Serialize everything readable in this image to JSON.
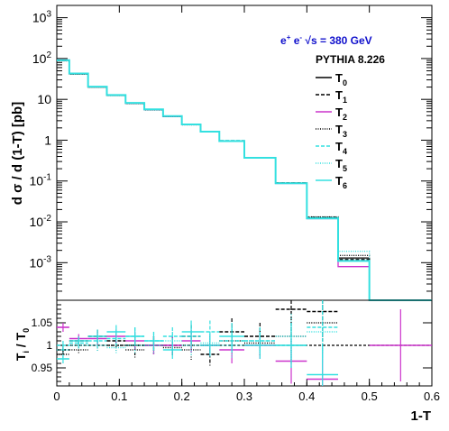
{
  "chart_data": [
    {
      "panel": "upper",
      "type": "line",
      "step": true,
      "yscale": "log",
      "xlim": [
        0,
        0.6
      ],
      "ylim": [
        0.00012,
        2000
      ],
      "ylabel": "d σ / d (1-T) [pb]",
      "title": "e+ e- √s = 380 GeV",
      "title_parts": {
        "beam1": "e",
        "sup1": "+",
        "beam2": "e",
        "sup2": "-",
        "energy": "√s = 380 GeV"
      },
      "subtitle": "PYTHIA 8.226",
      "yticks": [
        {
          "v": 0.001,
          "base": "10",
          "exp": "-3"
        },
        {
          "v": 0.01,
          "base": "10",
          "exp": "-2"
        },
        {
          "v": 0.1,
          "base": "10",
          "exp": "-1"
        },
        {
          "v": 1,
          "base": "1",
          "exp": ""
        },
        {
          "v": 10,
          "base": "10",
          "exp": ""
        },
        {
          "v": 100,
          "base": "10",
          "exp": "2"
        },
        {
          "v": 1000,
          "base": "10",
          "exp": "3"
        }
      ],
      "legend_position": "top-right",
      "edges": [
        0,
        0.02,
        0.05,
        0.08,
        0.11,
        0.14,
        0.17,
        0.2,
        0.23,
        0.26,
        0.3,
        0.35,
        0.4,
        0.45,
        0.5
      ],
      "series": [
        {
          "name": "T",
          "sub": "0",
          "color": "#000000",
          "dash": "",
          "values": [
            90,
            42,
            20,
            12.5,
            8,
            5.6,
            3.8,
            2.4,
            1.6,
            0.95,
            0.37,
            0.088,
            0.0125,
            0.0013,
            0
          ]
        },
        {
          "name": "T",
          "sub": "1",
          "color": "#000000",
          "dash": "4,2",
          "values": [
            89,
            42,
            20.2,
            12.6,
            8.1,
            5.7,
            3.85,
            2.42,
            1.63,
            0.97,
            0.375,
            0.09,
            0.013,
            0.0012,
            0
          ]
        },
        {
          "name": "T",
          "sub": "2",
          "color": "#cc33cc",
          "dash": "",
          "values": [
            92,
            43,
            20.4,
            12.8,
            8.05,
            5.6,
            3.8,
            2.45,
            1.6,
            0.94,
            0.37,
            0.087,
            0.012,
            0.0008,
            0
          ]
        },
        {
          "name": "T",
          "sub": "3",
          "color": "#000000",
          "dash": "1,1.5",
          "values": [
            88,
            41.5,
            20,
            12.4,
            7.9,
            5.5,
            3.78,
            2.38,
            1.6,
            0.96,
            0.373,
            0.09,
            0.0132,
            0.0015,
            0
          ]
        },
        {
          "name": "T",
          "sub": "4",
          "color": "#33e0e0",
          "dash": "4,2",
          "values": [
            90,
            42.3,
            20.3,
            12.7,
            8.2,
            5.65,
            3.9,
            2.45,
            1.62,
            0.98,
            0.375,
            0.088,
            0.0123,
            0.0011,
            0
          ]
        },
        {
          "name": "T",
          "sub": "5",
          "color": "#33e0e0",
          "dash": "1,1.5",
          "values": [
            89,
            42.2,
            20.1,
            12.5,
            8.05,
            5.6,
            3.85,
            2.42,
            1.61,
            0.96,
            0.37,
            0.089,
            0.0128,
            0.0019,
            0
          ]
        },
        {
          "name": "T",
          "sub": "6",
          "color": "#33e0e0",
          "dash": "",
          "values": [
            91,
            43,
            20.4,
            12.8,
            8.2,
            5.7,
            3.9,
            2.43,
            1.62,
            0.95,
            0.37,
            0.088,
            0.0121,
            0.0011,
            0
          ]
        }
      ]
    },
    {
      "panel": "lower",
      "type": "scatter",
      "xlabel": "1-T",
      "ylabel": "T",
      "ylabel_parts": {
        "num": "T",
        "num_sub": "i",
        "sep": " / ",
        "den": "T",
        "den_sub": "0"
      },
      "xlim": [
        0,
        0.6
      ],
      "ylim": [
        0.91,
        1.1
      ],
      "xticks": [
        "0",
        "0.1",
        "0.2",
        "0.3",
        "0.4",
        "0.5",
        "0.6"
      ],
      "xtick_values": [
        0,
        0.1,
        0.2,
        0.3,
        0.4,
        0.5,
        0.6
      ],
      "yticks": [
        "0.95",
        "1",
        "1.05"
      ],
      "ytick_values": [
        0.95,
        1,
        1.05
      ],
      "reference": 1,
      "series": [
        {
          "sub": "1",
          "color": "#000000",
          "dash": "4,2",
          "points": [
            [
              0.01,
              0.99,
              0.01
            ],
            [
              0.035,
              1.01,
              0.01
            ],
            [
              0.065,
              1.02,
              0.015
            ],
            [
              0.095,
              1.01,
              0.015
            ],
            [
              0.125,
              1.0,
              0.02
            ],
            [
              0.155,
              1.0,
              0.02
            ],
            [
              0.185,
              1.0,
              0.02
            ],
            [
              0.215,
              1.02,
              0.025
            ],
            [
              0.245,
              0.98,
              0.025
            ],
            [
              0.28,
              1.03,
              0.03
            ],
            [
              0.325,
              1.02,
              0.03
            ],
            [
              0.375,
              1.08,
              0.06
            ],
            [
              0.425,
              1.075,
              0.07
            ]
          ]
        },
        {
          "sub": "2",
          "color": "#cc33cc",
          "dash": "",
          "points": [
            [
              0.01,
              1.04,
              0.01
            ],
            [
              0.035,
              1.015,
              0.01
            ],
            [
              0.065,
              1.015,
              0.015
            ],
            [
              0.095,
              1.02,
              0.015
            ],
            [
              0.125,
              1.01,
              0.02
            ],
            [
              0.155,
              1.0,
              0.02
            ],
            [
              0.185,
              1.0,
              0.02
            ],
            [
              0.215,
              1.01,
              0.025
            ],
            [
              0.245,
              1.0,
              0.025
            ],
            [
              0.28,
              0.99,
              0.03
            ],
            [
              0.325,
              1.0,
              0.03
            ],
            [
              0.375,
              0.965,
              0.05
            ],
            [
              0.425,
              0.925,
              0.07
            ],
            [
              0.55,
              1.0,
              0.08
            ]
          ]
        },
        {
          "sub": "3",
          "color": "#000000",
          "dash": "1,1.5",
          "points": [
            [
              0.01,
              0.98,
              0.01
            ],
            [
              0.035,
              0.99,
              0.01
            ],
            [
              0.065,
              1.0,
              0.015
            ],
            [
              0.095,
              1.0,
              0.015
            ],
            [
              0.125,
              0.99,
              0.02
            ],
            [
              0.155,
              1.0,
              0.02
            ],
            [
              0.185,
              0.995,
              0.02
            ],
            [
              0.215,
              0.99,
              0.025
            ],
            [
              0.245,
              1.0,
              0.025
            ],
            [
              0.28,
              1.01,
              0.03
            ],
            [
              0.325,
              1.005,
              0.03
            ],
            [
              0.375,
              1.02,
              0.06
            ],
            [
              0.425,
              1.05,
              0.07
            ]
          ]
        },
        {
          "sub": "4",
          "color": "#33e0e0",
          "dash": "4,2",
          "points": [
            [
              0.01,
              1.0,
              0.01
            ],
            [
              0.035,
              1.005,
              0.01
            ],
            [
              0.065,
              1.01,
              0.015
            ],
            [
              0.095,
              1.015,
              0.015
            ],
            [
              0.125,
              1.02,
              0.02
            ],
            [
              0.155,
              1.01,
              0.02
            ],
            [
              0.185,
              1.02,
              0.02
            ],
            [
              0.215,
              1.02,
              0.025
            ],
            [
              0.245,
              1.03,
              0.025
            ],
            [
              0.28,
              1.01,
              0.03
            ],
            [
              0.325,
              1.01,
              0.03
            ],
            [
              0.375,
              1.0,
              0.05
            ],
            [
              0.425,
              1.04,
              0.07
            ]
          ]
        },
        {
          "sub": "5",
          "color": "#33e0e0",
          "dash": "1,1.5",
          "points": [
            [
              0.01,
              0.99,
              0.01
            ],
            [
              0.035,
              1.0,
              0.01
            ],
            [
              0.065,
              1.0,
              0.015
            ],
            [
              0.095,
              0.995,
              0.015
            ],
            [
              0.125,
              1.0,
              0.02
            ],
            [
              0.155,
              1.0,
              0.02
            ],
            [
              0.185,
              1.01,
              0.02
            ],
            [
              0.215,
              1.0,
              0.025
            ],
            [
              0.245,
              1.005,
              0.025
            ],
            [
              0.28,
              1.0,
              0.03
            ],
            [
              0.325,
              1.01,
              0.03
            ],
            [
              0.375,
              1.02,
              0.05
            ],
            [
              0.425,
              1.03,
              0.07
            ]
          ]
        },
        {
          "sub": "6",
          "color": "#33e0e0",
          "dash": "",
          "points": [
            [
              0.01,
              0.97,
              0.01
            ],
            [
              0.035,
              1.01,
              0.01
            ],
            [
              0.065,
              1.02,
              0.015
            ],
            [
              0.095,
              1.03,
              0.015
            ],
            [
              0.125,
              1.02,
              0.02
            ],
            [
              0.155,
              1.01,
              0.02
            ],
            [
              0.185,
              0.99,
              0.02
            ],
            [
              0.215,
              1.03,
              0.025
            ],
            [
              0.245,
              1.0,
              0.025
            ],
            [
              0.28,
              1.02,
              0.03
            ],
            [
              0.325,
              1.0,
              0.03
            ],
            [
              0.375,
              1.0,
              0.05
            ],
            [
              0.425,
              0.935,
              0.07
            ]
          ]
        }
      ]
    }
  ]
}
